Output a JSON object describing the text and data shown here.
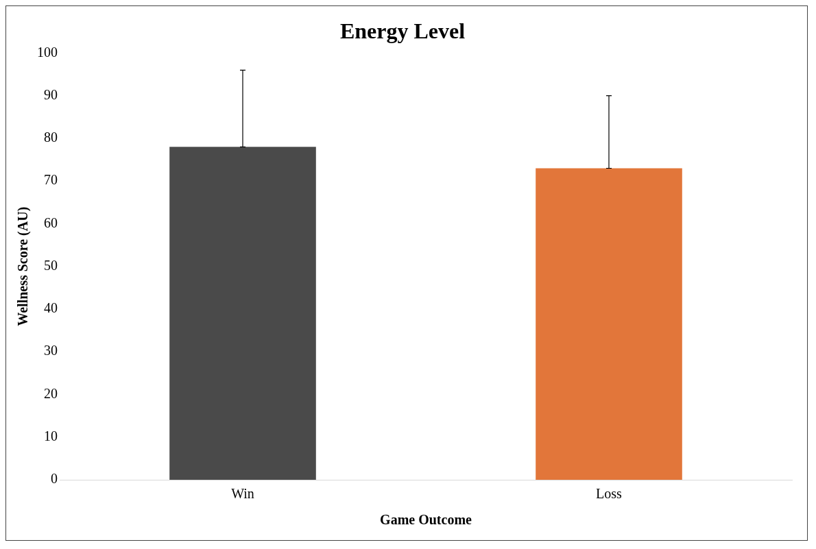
{
  "chart_data": {
    "type": "bar",
    "title": "Energy Level",
    "xlabel": "Game Outcome",
    "ylabel": "Wellness Score (AU)",
    "categories": [
      "Win",
      "Loss"
    ],
    "values": [
      78,
      73
    ],
    "colors": [
      "#4a4a4a",
      "#e2763a"
    ],
    "errors": [
      [
        78,
        96
      ],
      [
        73,
        90
      ]
    ],
    "ylim": [
      0,
      100
    ],
    "yticks": [
      0,
      10,
      20,
      30,
      40,
      50,
      60,
      70,
      80,
      90,
      100
    ],
    "grid": false,
    "legend": false
  }
}
